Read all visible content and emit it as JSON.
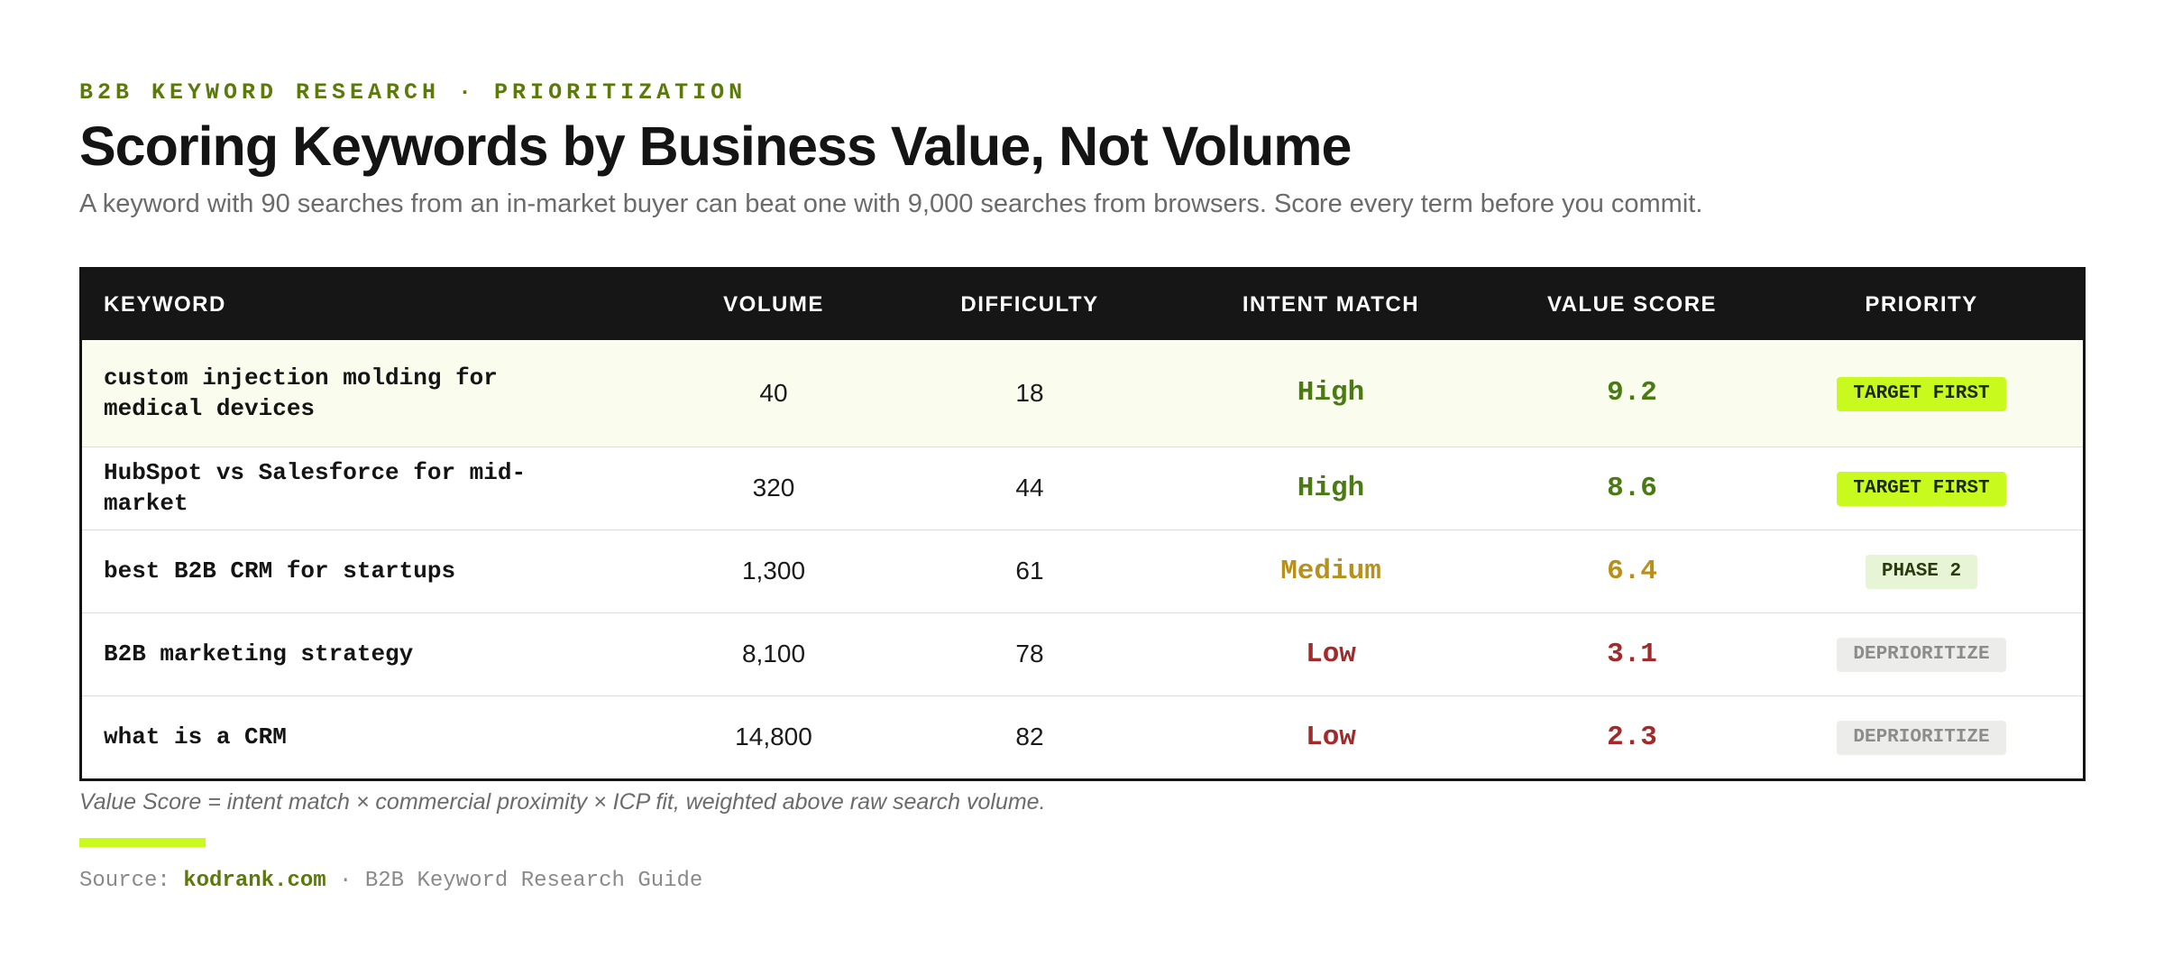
{
  "header": {
    "eyebrow": "B2B KEYWORD RESEARCH · PRIORITIZATION",
    "title": "Scoring Keywords by Business Value, Not Volume",
    "subtitle": "A keyword with 90 searches from an in-market buyer can beat one with 9,000 searches from browsers. Score every term before you commit."
  },
  "table": {
    "columns": [
      "KEYWORD",
      "VOLUME",
      "DIFFICULTY",
      "INTENT MATCH",
      "VALUE SCORE",
      "PRIORITY"
    ],
    "rows": [
      {
        "keyword": "custom injection molding for medical devices",
        "volume": "40",
        "difficulty": "18",
        "intent": "High",
        "score": "9.2",
        "priority": "TARGET FIRST",
        "level": "high",
        "badge": "target"
      },
      {
        "keyword": "HubSpot vs Salesforce for mid-market",
        "volume": "320",
        "difficulty": "44",
        "intent": "High",
        "score": "8.6",
        "priority": "TARGET FIRST",
        "level": "high",
        "badge": "target"
      },
      {
        "keyword": "best B2B CRM for startups",
        "volume": "1,300",
        "difficulty": "61",
        "intent": "Medium",
        "score": "6.4",
        "priority": "PHASE 2",
        "level": "medium",
        "badge": "phase"
      },
      {
        "keyword": "B2B marketing strategy",
        "volume": "8,100",
        "difficulty": "78",
        "intent": "Low",
        "score": "3.1",
        "priority": "DEPRIORITIZE",
        "level": "low",
        "badge": "depri"
      },
      {
        "keyword": "what is a CRM",
        "volume": "14,800",
        "difficulty": "82",
        "intent": "Low",
        "score": "2.3",
        "priority": "DEPRIORITIZE",
        "level": "low",
        "badge": "depri"
      }
    ]
  },
  "footnote": "Value Score = intent match × commercial proximity × ICP fit, weighted above raw search volume.",
  "source": {
    "prefix": "Source: ",
    "site": "kodrank.com",
    "suffix": " · B2B Keyword Research Guide"
  },
  "colors": {
    "accent": "#c8fa1e",
    "brand_green": "#5a7a0a",
    "high": "#4a7a12",
    "medium": "#b8901c",
    "low": "#a32a2a"
  }
}
